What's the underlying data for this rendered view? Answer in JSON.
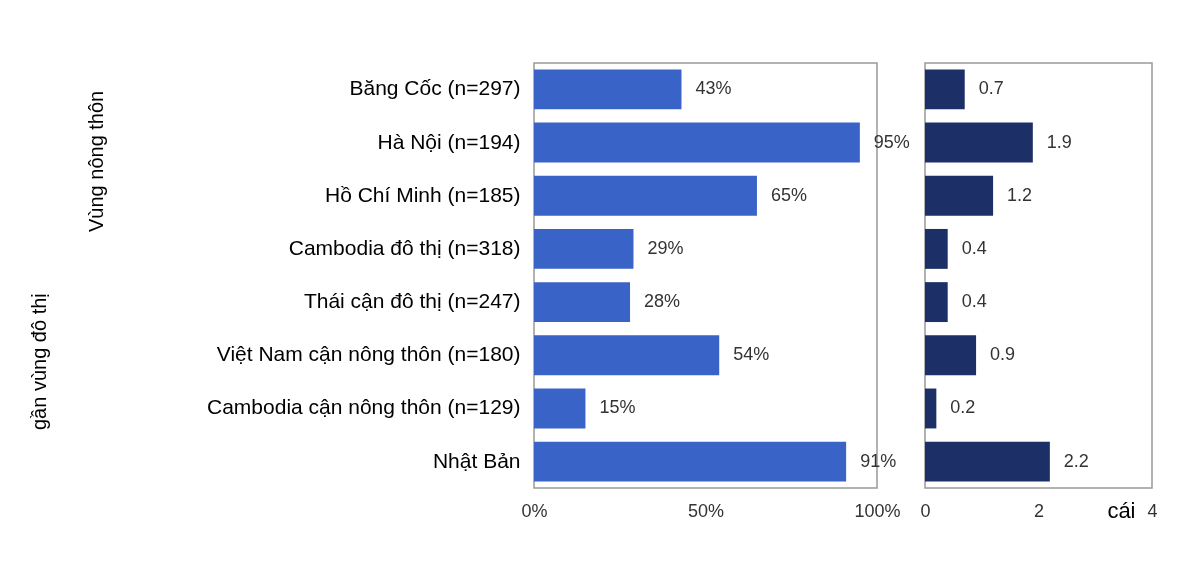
{
  "chart_data": [
    {
      "type": "bar",
      "orientation": "horizontal",
      "categories": [
        "Băng Cốc (n=297)",
        "Hà Nội (n=194)",
        "Hồ Chí Minh (n=185)",
        "Cambodia đô thị (n=318)",
        "Thái cận đô thị (n=247)",
        "Việt Nam cận nông thôn (n=180)",
        "Cambodia cận nông thôn (n=129)",
        "Nhật Bản"
      ],
      "values": [
        43,
        95,
        65,
        29,
        28,
        54,
        15,
        91
      ],
      "value_labels": [
        "43%",
        "95%",
        "65%",
        "29%",
        "28%",
        "54%",
        "15%",
        "91%"
      ],
      "color": "#3a63c8",
      "xlim": [
        0,
        100
      ],
      "xticks": [
        {
          "value": 0,
          "label": "0%"
        },
        {
          "value": 50,
          "label": "50%"
        },
        {
          "value": 100,
          "label": "100%"
        }
      ],
      "annotations": [
        "Vùng nông thôn",
        "gần vùng đô thị"
      ],
      "grid": false
    },
    {
      "type": "bar",
      "orientation": "horizontal",
      "categories": [
        null,
        null,
        null,
        null,
        null,
        null,
        null,
        null
      ],
      "values": [
        0.7,
        1.9,
        1.2,
        0.4,
        0.4,
        0.9,
        0.2,
        2.2
      ],
      "data_labels": true,
      "color": "#1c2f66",
      "xlim": [
        0,
        4
      ],
      "xticks": [
        0,
        2,
        4
      ],
      "xlabel": "cái",
      "tick_labels": "x",
      "grid": false
    }
  ]
}
